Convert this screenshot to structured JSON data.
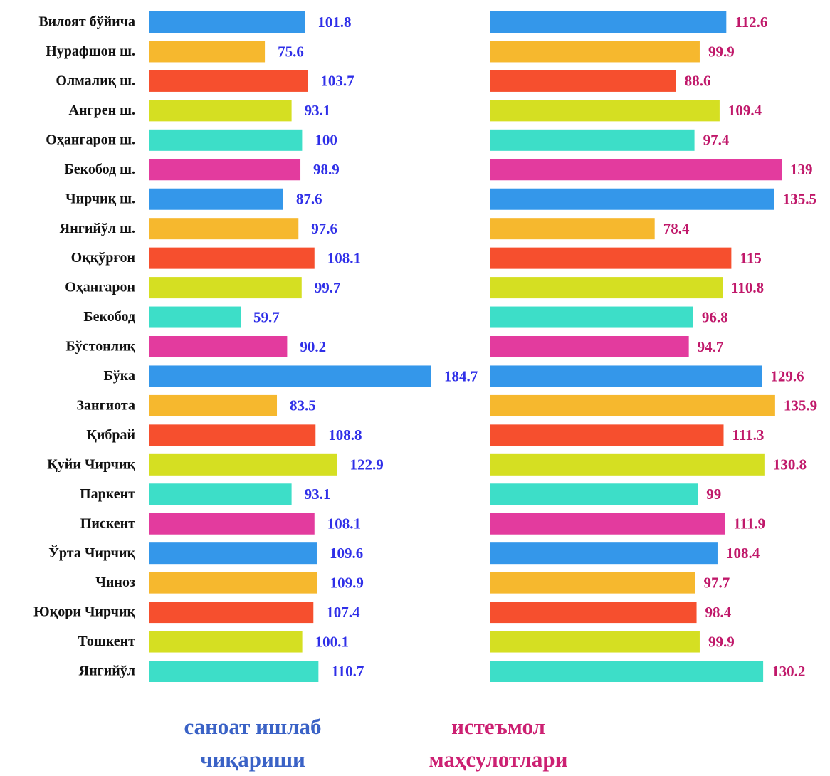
{
  "chart_data": [
    {
      "type": "bar",
      "orientation": "horizontal",
      "title": "саноат ишлаб чиқариши",
      "title_color": "#3a62c6",
      "label_color": "#2f2fe8",
      "categories": [
        "Вилоят бўйича",
        "Нурафшон ш.",
        "Олмалиқ ш.",
        "Ангрен ш.",
        "Оҳангарон ш.",
        "Бекобод ш.",
        "Чирчиқ ш.",
        "Янгийўл ш.",
        "Оққўрғон",
        "Оҳангарон",
        "Бекобод",
        "Бўстонлиқ",
        "Бўка",
        "Зангиота",
        "Қибрай",
        "Қуйи Чирчиқ",
        "Паркент",
        "Пискент",
        "Ўрта Чирчиқ",
        "Чиноз",
        "Юқори Чирчиқ",
        "Тошкент",
        "Янгийўл"
      ],
      "values": [
        101.8,
        75.6,
        103.7,
        93.1,
        100,
        98.9,
        87.6,
        97.6,
        108.1,
        99.7,
        59.7,
        90.2,
        184.7,
        83.5,
        108.8,
        122.9,
        93.1,
        108.1,
        109.6,
        109.9,
        107.4,
        100.1,
        110.7
      ],
      "colors": [
        "#3497ea",
        "#f6b82e",
        "#f64f2e",
        "#d5df22",
        "#3ddec8",
        "#e33b9e"
      ]
    },
    {
      "type": "bar",
      "orientation": "horizontal",
      "title": "истеъмол маҳсулотлари",
      "title_color": "#cc2072",
      "label_color": "#c0186a",
      "values": [
        112.6,
        99.9,
        88.6,
        109.4,
        97.4,
        139,
        135.5,
        78.4,
        115,
        110.8,
        96.8,
        94.7,
        129.6,
        135.9,
        111.3,
        130.8,
        99,
        111.9,
        108.4,
        97.7,
        98.4,
        99.9,
        130.2
      ],
      "colors": [
        "#3497ea",
        "#f6b82e",
        "#f64f2e",
        "#d5df22",
        "#3ddec8",
        "#e33b9e"
      ]
    }
  ]
}
